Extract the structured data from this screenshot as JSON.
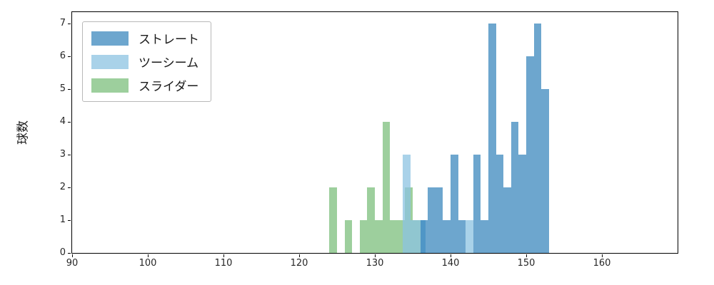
{
  "chart_data": {
    "type": "bar",
    "subtype": "histogram",
    "title": "",
    "xlabel": "",
    "ylabel": "球数",
    "xlim": [
      90,
      170
    ],
    "ylim": [
      0,
      7.35
    ],
    "xticks": [
      90,
      100,
      110,
      120,
      130,
      140,
      150,
      160
    ],
    "yticks": [
      0,
      1,
      2,
      3,
      4,
      5,
      6,
      7
    ],
    "grid": false,
    "legend_position": "upper left",
    "series": [
      {
        "id": "straight",
        "name": "ストレート",
        "color": "rgba(31,119,180,0.65)",
        "z": 3,
        "bins": [
          {
            "x": 136,
            "w": 1,
            "c": 1
          },
          {
            "x": 137,
            "w": 1,
            "c": 2
          },
          {
            "x": 138,
            "w": 1,
            "c": 2
          },
          {
            "x": 139,
            "w": 1,
            "c": 1
          },
          {
            "x": 140,
            "w": 1,
            "c": 3
          },
          {
            "x": 141,
            "w": 1,
            "c": 1
          },
          {
            "x": 143,
            "w": 1,
            "c": 3
          },
          {
            "x": 144,
            "w": 1,
            "c": 1
          },
          {
            "x": 145,
            "w": 1,
            "c": 7
          },
          {
            "x": 146,
            "w": 1,
            "c": 3
          },
          {
            "x": 147,
            "w": 1,
            "c": 2
          },
          {
            "x": 148,
            "w": 1,
            "c": 4
          },
          {
            "x": 149,
            "w": 1,
            "c": 3
          },
          {
            "x": 150,
            "w": 1,
            "c": 6
          },
          {
            "x": 151,
            "w": 1,
            "c": 7
          },
          {
            "x": 152,
            "w": 1,
            "c": 5
          }
        ]
      },
      {
        "id": "twoseam",
        "name": "ツーシーム",
        "color": "rgba(140,195,225,0.75)",
        "z": 2,
        "bins": [
          {
            "x": 133.7,
            "w": 1,
            "c": 3
          },
          {
            "x": 134.7,
            "w": 1,
            "c": 1
          },
          {
            "x": 135.7,
            "w": 1,
            "c": 1
          },
          {
            "x": 142.0,
            "w": 1,
            "c": 1
          }
        ]
      },
      {
        "id": "slider",
        "name": "スライダー",
        "color": "rgba(60,160,60,0.5)",
        "z": 1,
        "bins": [
          {
            "x": 124,
            "w": 1,
            "c": 2
          },
          {
            "x": 126,
            "w": 1,
            "c": 1
          },
          {
            "x": 128,
            "w": 1,
            "c": 1
          },
          {
            "x": 129,
            "w": 1,
            "c": 2
          },
          {
            "x": 130,
            "w": 1,
            "c": 1
          },
          {
            "x": 131,
            "w": 1,
            "c": 4
          },
          {
            "x": 132,
            "w": 1,
            "c": 1
          },
          {
            "x": 133,
            "w": 1,
            "c": 1
          },
          {
            "x": 134,
            "w": 1,
            "c": 2
          },
          {
            "x": 135,
            "w": 1,
            "c": 1
          }
        ]
      }
    ]
  }
}
